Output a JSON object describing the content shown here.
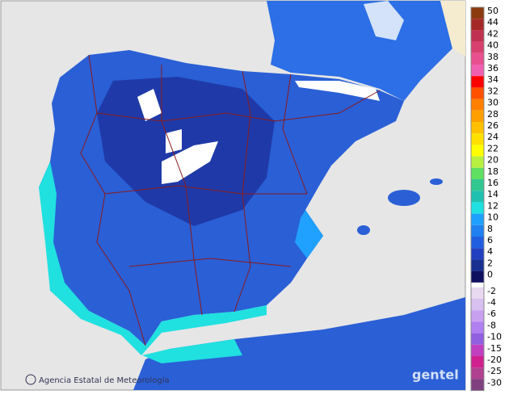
{
  "map": {
    "credit": "Agencia Estatal de Meteorología",
    "watermark": "gentel",
    "legend": [
      {
        "label": 50,
        "color": "#8b3a0f"
      },
      {
        "label": 44,
        "color": "#a52828"
      },
      {
        "label": 42,
        "color": "#c03050"
      },
      {
        "label": 40,
        "color": "#d84070"
      },
      {
        "label": 38,
        "color": "#e85090"
      },
      {
        "label": 36,
        "color": "#f060b0"
      },
      {
        "label": 34,
        "color": "#ff0000"
      },
      {
        "label": 32,
        "color": "#ff5000"
      },
      {
        "label": 30,
        "color": "#ff8000"
      },
      {
        "label": 28,
        "color": "#ffa000"
      },
      {
        "label": 26,
        "color": "#ffc000"
      },
      {
        "label": 24,
        "color": "#ffe000"
      },
      {
        "label": 22,
        "color": "#ffff00"
      },
      {
        "label": 20,
        "color": "#b8f040"
      },
      {
        "label": 18,
        "color": "#60e060"
      },
      {
        "label": 16,
        "color": "#30c890"
      },
      {
        "label": 14,
        "color": "#20c0b0"
      },
      {
        "label": 12,
        "color": "#20e0e0"
      },
      {
        "label": 10,
        "color": "#20a0ff"
      },
      {
        "label": 8,
        "color": "#2080f0"
      },
      {
        "label": 6,
        "color": "#2060e0"
      },
      {
        "label": 4,
        "color": "#2040c0"
      },
      {
        "label": 2,
        "color": "#183090"
      },
      {
        "label": 0,
        "color": "#101060"
      },
      {
        "label": -2,
        "color": "#e8d8f0"
      },
      {
        "label": -4,
        "color": "#d8c0f0"
      },
      {
        "label": -6,
        "color": "#c8a0f0"
      },
      {
        "label": -8,
        "color": "#b080f0"
      },
      {
        "label": -10,
        "color": "#9060e0"
      },
      {
        "label": -15,
        "color": "#c040c0"
      },
      {
        "label": -20,
        "color": "#d02090"
      },
      {
        "label": -25,
        "color": "#b04090"
      },
      {
        "label": -30,
        "color": "#804080"
      }
    ]
  }
}
